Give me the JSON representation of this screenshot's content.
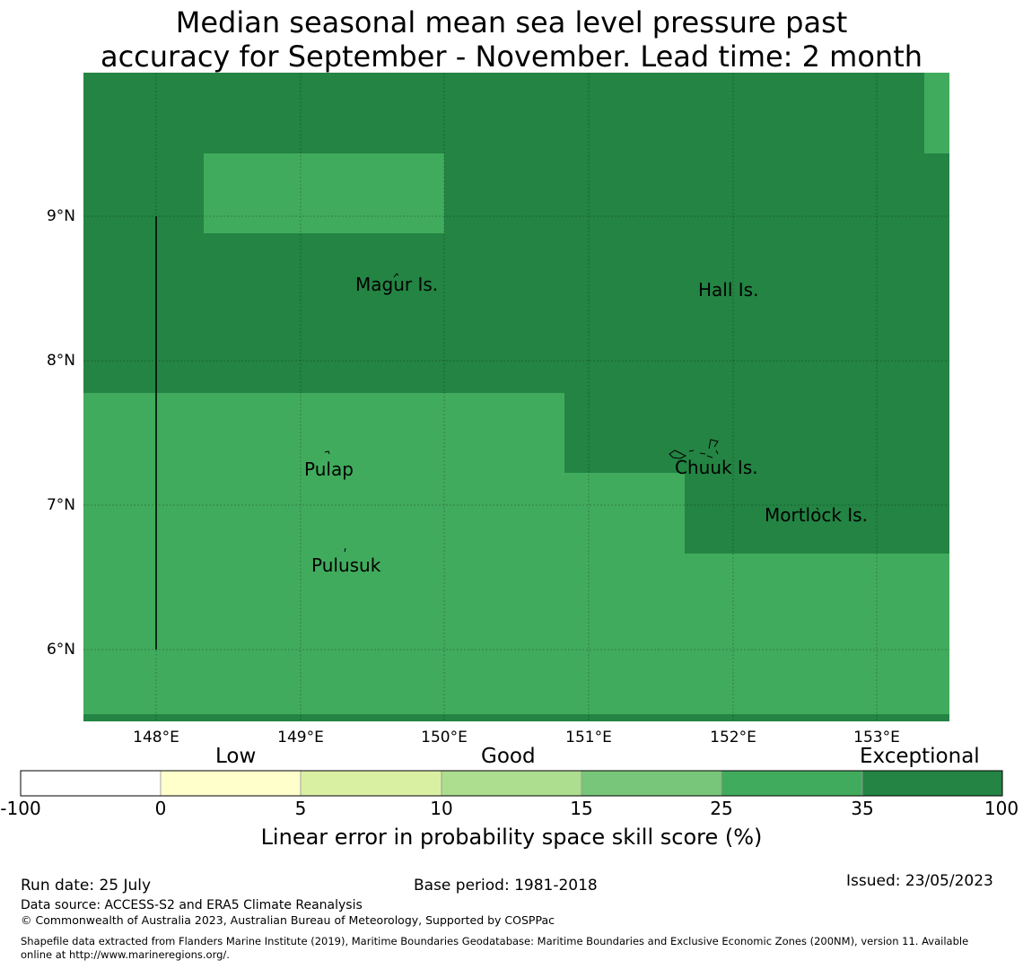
{
  "title_line1": "Median seasonal mean sea level pressure past",
  "title_line2": "accuracy for September - November. Lead time: 2 month",
  "map": {
    "lat_labels": [
      "9°N",
      "8°N",
      "7°N",
      "6°N"
    ],
    "lon_labels": [
      "148°E",
      "149°E",
      "150°E",
      "151°E",
      "152°E",
      "153°E"
    ],
    "places": [
      {
        "name": "Magur Is."
      },
      {
        "name": "Hall Is."
      },
      {
        "name": "Pulap"
      },
      {
        "name": "Chuuk Is."
      },
      {
        "name": "Mortlock Is."
      },
      {
        "name": "Pulusuk"
      }
    ],
    "colors": {
      "exceptional": "#238443",
      "very_good": "#41ab5d"
    }
  },
  "colorbar": {
    "categories": [
      "Low",
      "Good",
      "Exceptional"
    ],
    "ticks": [
      "-100",
      "0",
      "5",
      "10",
      "15",
      "25",
      "35",
      "100"
    ],
    "colors": [
      "#ffffff",
      "#ffffcc",
      "#d9f0a3",
      "#addd8e",
      "#78c679",
      "#41ab5d",
      "#238443"
    ],
    "label": "Linear error in probability space skill score (%)"
  },
  "footer": {
    "run_date": "Run date: 25 July",
    "base_period": "Base period: 1981-2018",
    "issued": "Issued: 23/05/2023",
    "data_source": "Data source: ACCESS-S2 and ERA5 Climate Reanalysis",
    "copyright": "© Commonwealth of Australia 2023, Australian Bureau of Meteorology, Supported by COSPPac",
    "shapefile_line1": "Shapefile data extracted from Flanders Marine Institute (2019), Maritime Boundaries Geodatabase: Maritime Boundaries and Exclusive Economic Zones (200NM), version 11. Available",
    "shapefile_line2": "online at http://www.marineregions.org/."
  }
}
